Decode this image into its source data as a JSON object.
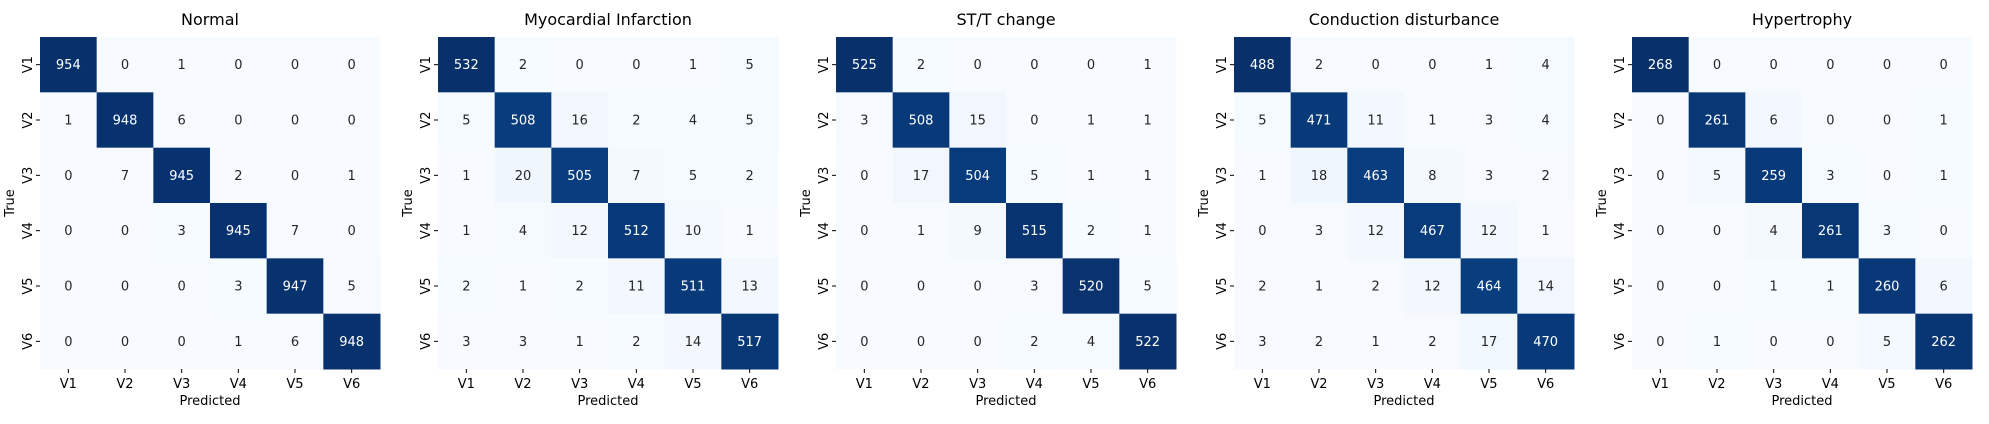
{
  "chart_data": [
    {
      "type": "heatmap",
      "title": "Normal",
      "xlabel": "Predicted",
      "ylabel": "True",
      "x_categories": [
        "V1",
        "V2",
        "V3",
        "V4",
        "V5",
        "V6"
      ],
      "y_categories": [
        "V1",
        "V2",
        "V3",
        "V4",
        "V5",
        "V6"
      ],
      "colormap": "Blues",
      "values": [
        [
          954,
          0,
          1,
          0,
          0,
          0
        ],
        [
          1,
          948,
          6,
          0,
          0,
          0
        ],
        [
          0,
          7,
          945,
          2,
          0,
          1
        ],
        [
          0,
          0,
          3,
          945,
          7,
          0
        ],
        [
          0,
          0,
          0,
          3,
          947,
          5
        ],
        [
          0,
          0,
          0,
          1,
          6,
          948
        ]
      ]
    },
    {
      "type": "heatmap",
      "title": "Myocardial Infarction",
      "xlabel": "Predicted",
      "ylabel": "True",
      "x_categories": [
        "V1",
        "V2",
        "V3",
        "V4",
        "V5",
        "V6"
      ],
      "y_categories": [
        "V1",
        "V2",
        "V3",
        "V4",
        "V5",
        "V6"
      ],
      "colormap": "Blues",
      "values": [
        [
          532,
          2,
          0,
          0,
          1,
          5
        ],
        [
          5,
          508,
          16,
          2,
          4,
          5
        ],
        [
          1,
          20,
          505,
          7,
          5,
          2
        ],
        [
          1,
          4,
          12,
          512,
          10,
          1
        ],
        [
          2,
          1,
          2,
          11,
          511,
          13
        ],
        [
          3,
          3,
          1,
          2,
          14,
          517
        ]
      ]
    },
    {
      "type": "heatmap",
      "title": "ST/T change",
      "xlabel": "Predicted",
      "ylabel": "True",
      "x_categories": [
        "V1",
        "V2",
        "V3",
        "V4",
        "V5",
        "V6"
      ],
      "y_categories": [
        "V1",
        "V2",
        "V3",
        "V4",
        "V5",
        "V6"
      ],
      "colormap": "Blues",
      "values": [
        [
          525,
          2,
          0,
          0,
          0,
          1
        ],
        [
          3,
          508,
          15,
          0,
          1,
          1
        ],
        [
          0,
          17,
          504,
          5,
          1,
          1
        ],
        [
          0,
          1,
          9,
          515,
          2,
          1
        ],
        [
          0,
          0,
          0,
          3,
          520,
          5
        ],
        [
          0,
          0,
          0,
          2,
          4,
          522
        ]
      ]
    },
    {
      "type": "heatmap",
      "title": "Conduction disturbance",
      "xlabel": "Predicted",
      "ylabel": "True",
      "x_categories": [
        "V1",
        "V2",
        "V3",
        "V4",
        "V5",
        "V6"
      ],
      "y_categories": [
        "V1",
        "V2",
        "V3",
        "V4",
        "V5",
        "V6"
      ],
      "colormap": "Blues",
      "values": [
        [
          488,
          2,
          0,
          0,
          1,
          4
        ],
        [
          5,
          471,
          11,
          1,
          3,
          4
        ],
        [
          1,
          18,
          463,
          8,
          3,
          2
        ],
        [
          0,
          3,
          12,
          467,
          12,
          1
        ],
        [
          2,
          1,
          2,
          12,
          464,
          14
        ],
        [
          3,
          2,
          1,
          2,
          17,
          470
        ]
      ]
    },
    {
      "type": "heatmap",
      "title": "Hypertrophy",
      "xlabel": "Predicted",
      "ylabel": "True",
      "x_categories": [
        "V1",
        "V2",
        "V3",
        "V4",
        "V5",
        "V6"
      ],
      "y_categories": [
        "V1",
        "V2",
        "V3",
        "V4",
        "V5",
        "V6"
      ],
      "colormap": "Blues",
      "values": [
        [
          268,
          0,
          0,
          0,
          0,
          0
        ],
        [
          0,
          261,
          6,
          0,
          0,
          1
        ],
        [
          0,
          5,
          259,
          3,
          0,
          1
        ],
        [
          0,
          0,
          4,
          261,
          3,
          0
        ],
        [
          0,
          0,
          1,
          1,
          260,
          6
        ],
        [
          0,
          1,
          0,
          0,
          5,
          262
        ]
      ]
    }
  ]
}
